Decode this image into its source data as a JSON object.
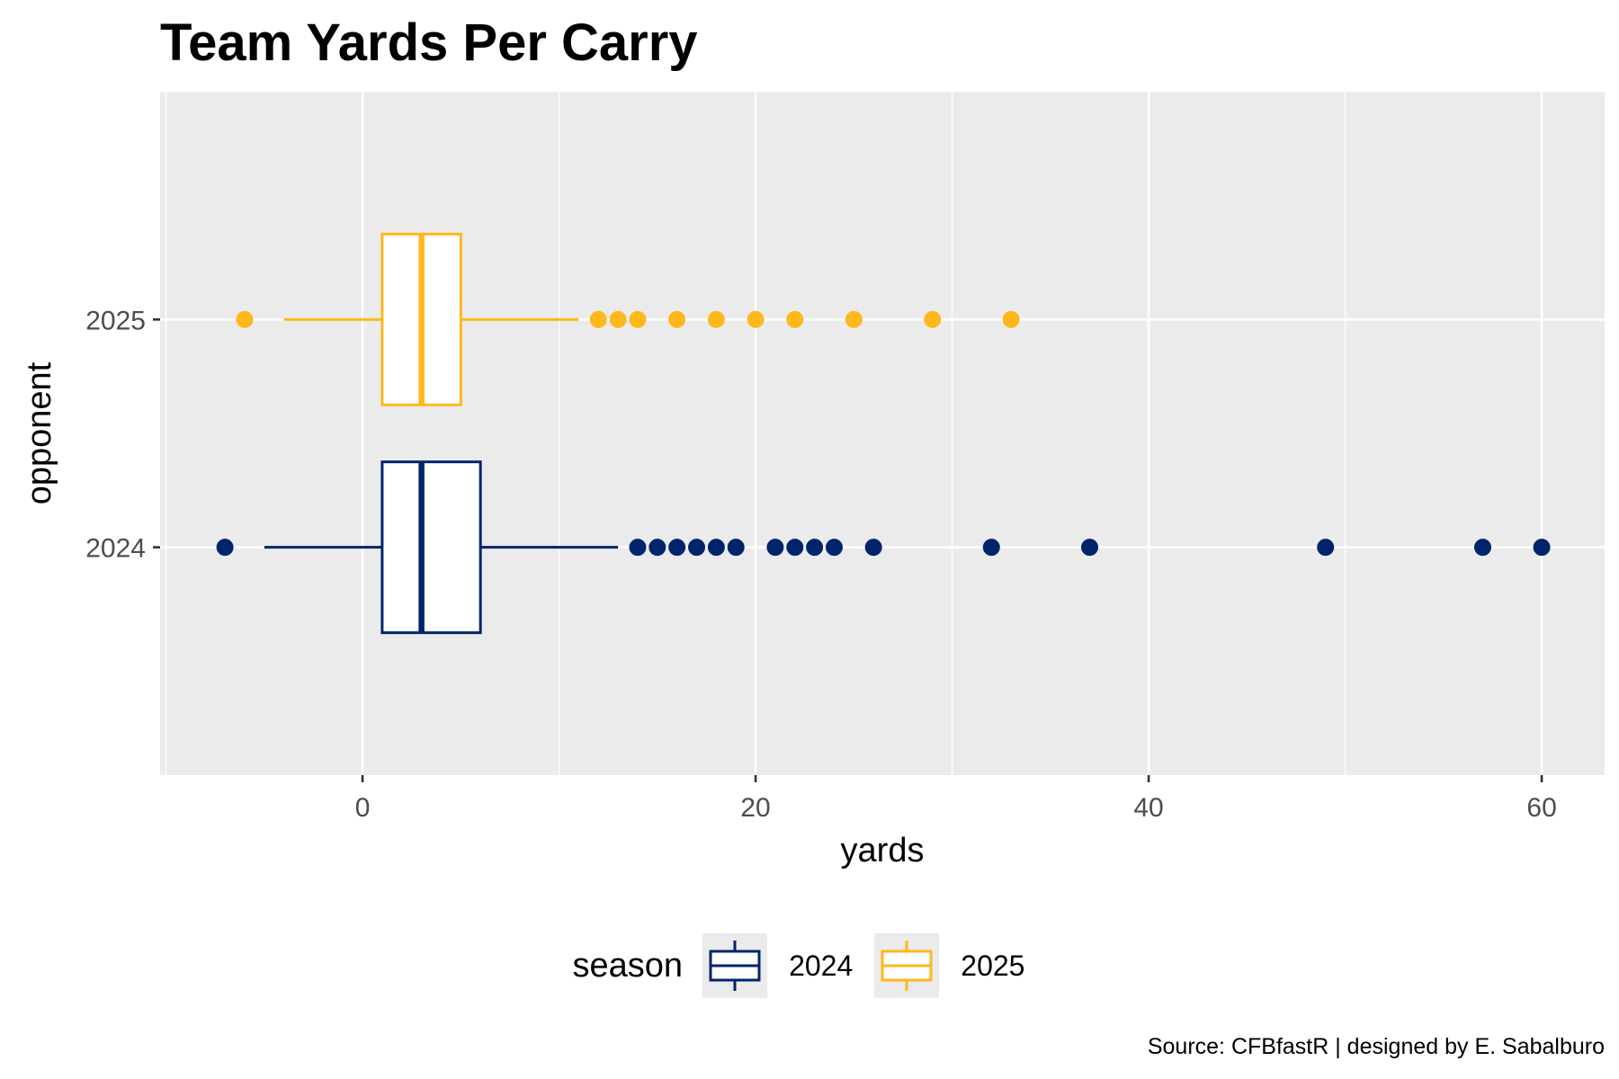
{
  "chart_data": {
    "type": "boxplot",
    "title": "Team Yards Per Carry",
    "xlabel": "yards",
    "ylabel": "opponent",
    "xlim": [
      -10.3,
      63.2
    ],
    "xticks": [
      0,
      20,
      40,
      60
    ],
    "categories": [
      "2024",
      "2025"
    ],
    "grid": true,
    "legend": {
      "title": "season",
      "position": "bottom"
    },
    "caption": "Source: CFBfastR | designed by E. Sabalburo",
    "series": [
      {
        "name": "2024",
        "color": "#00246b",
        "lower_whisker": -5,
        "q1": 1,
        "median": 3,
        "q3": 6,
        "upper_whisker": 13,
        "outliers": [
          -7,
          14,
          15,
          16,
          17,
          18,
          19,
          21,
          22,
          23,
          24,
          26,
          32,
          37,
          49,
          57,
          60
        ]
      },
      {
        "name": "2025",
        "color": "#ffb81c",
        "lower_whisker": -4,
        "q1": 1,
        "median": 3,
        "q3": 5,
        "upper_whisker": 11,
        "outliers": [
          -6,
          12,
          13,
          14,
          16,
          18,
          20,
          22,
          25,
          29,
          33
        ]
      }
    ]
  }
}
